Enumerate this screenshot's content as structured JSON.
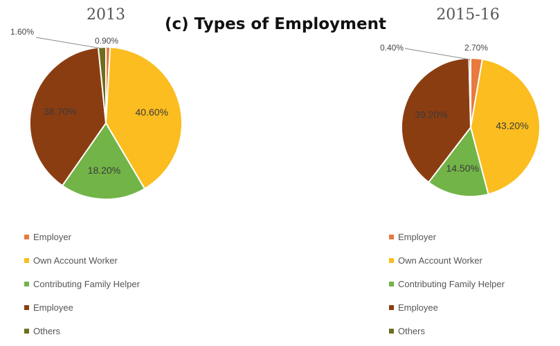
{
  "title": "(c) Types of Employment",
  "colors": {
    "Employer": "#e87a3e",
    "Own Account Worker": "#fbbd1f",
    "Contributing Family Helper": "#72b447",
    "Employee": "#8b3d12",
    "Others": "#6e6e1e",
    "border": "#ffffff"
  },
  "chart_data": [
    {
      "type": "pie",
      "title": "2013",
      "categories": [
        "Employer",
        "Own Account Worker",
        "Contributing Family Helper",
        "Employee",
        "Others"
      ],
      "values": [
        0.9,
        40.6,
        18.2,
        38.7,
        1.6
      ],
      "labels": [
        "0.90%",
        "40.60%",
        "18.20%",
        "38.70%",
        "1.60%"
      ],
      "legend": [
        "Employer",
        "Own Account Worker",
        "Contributing Family Helper",
        "Employee",
        "Others"
      ],
      "legend_position": "bottom"
    },
    {
      "type": "pie",
      "title": "2015-16",
      "categories": [
        "Employer",
        "Own Account Worker",
        "Contributing Family Helper",
        "Employee",
        "Others"
      ],
      "values": [
        2.7,
        43.2,
        14.5,
        39.2,
        0.4
      ],
      "labels": [
        "2.70%",
        "43.20%",
        "14.50%",
        "39.20%",
        "0.40%"
      ],
      "legend": [
        "Employer",
        "Own Account Worker",
        "Contributing Family Helper",
        "Employee",
        "Others"
      ],
      "legend_position": "bottom"
    }
  ]
}
